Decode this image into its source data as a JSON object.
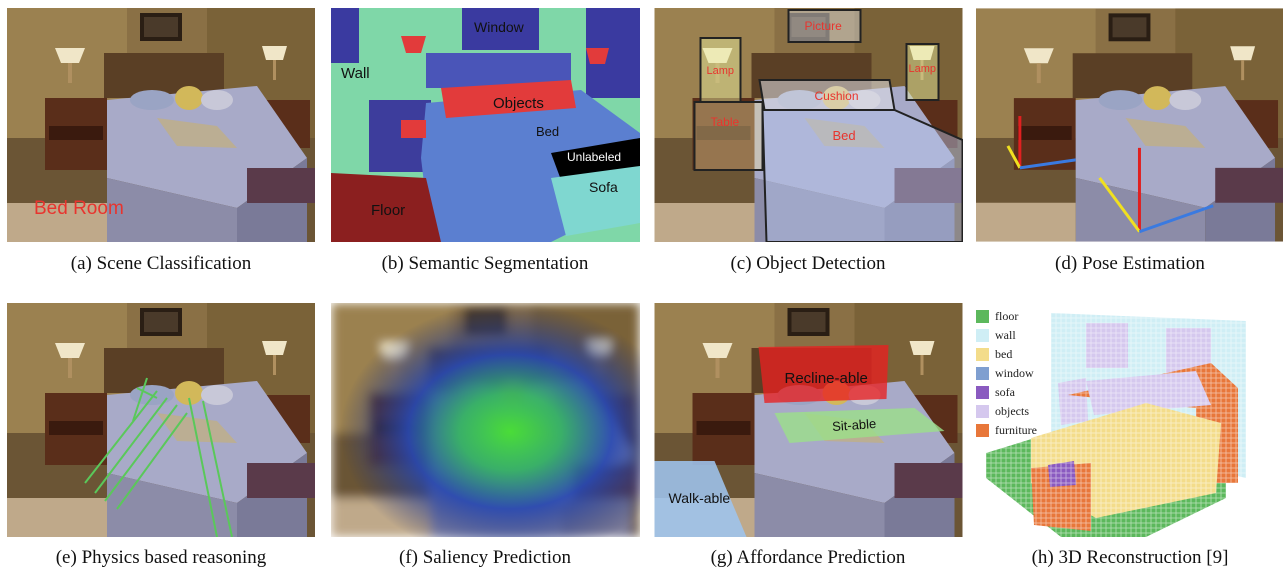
{
  "captions": {
    "a": "(a) Scene Classification",
    "b": "(b) Semantic Segmentation",
    "c": "(c) Object Detection",
    "d": "(d) Pose Estimation",
    "e": "(e) Physics based reasoning",
    "f": "(f) Saliency Prediction",
    "g": "(g) Affordance Prediction",
    "h": "(h) 3D Reconstruction [9]"
  },
  "panel_a": {
    "scene_label": "Bed Room"
  },
  "panel_b": {
    "labels": {
      "window": "Window",
      "wall": "Wall",
      "objects": "Objects",
      "bed": "Bed",
      "unlabeled": "Unlabeled",
      "sofa": "Sofa",
      "floor": "Floor"
    },
    "colors": {
      "wall": "#7fd7a8",
      "window": "#3a3aa0",
      "bed": "#5b7fd0",
      "floor": "#8b1f1f",
      "objects": "#e23b3b",
      "unlabeled": "#000000",
      "sofa": "#7fd7d0"
    }
  },
  "panel_c": {
    "labels": {
      "picture": "Picture",
      "lamp_left": "Lamp",
      "lamp_right": "Lamp",
      "cushion": "Cushion",
      "table": "Table",
      "bed": "Bed"
    }
  },
  "panel_g": {
    "labels": {
      "recline": "Recline-able",
      "sit": "Sit-able",
      "walk": "Walk-able"
    }
  },
  "legend": [
    {
      "label": "floor",
      "color": "#5cb85c"
    },
    {
      "label": "wall",
      "color": "#cfeef5"
    },
    {
      "label": "bed",
      "color": "#f3dc8a"
    },
    {
      "label": "window",
      "color": "#7f9fd0"
    },
    {
      "label": "sofa",
      "color": "#8a5ac0"
    },
    {
      "label": "objects",
      "color": "#d5c8ee"
    },
    {
      "label": "furniture",
      "color": "#e8773a"
    }
  ]
}
